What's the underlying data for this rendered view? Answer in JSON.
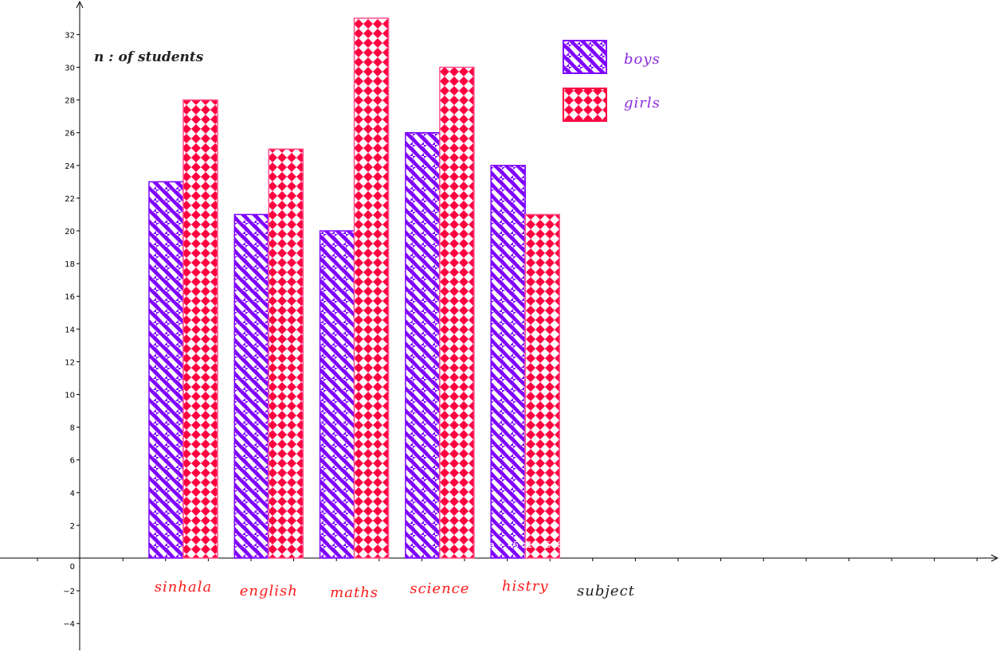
{
  "chart_data": {
    "type": "bar",
    "categories": [
      "sinhala",
      "english",
      "maths",
      "science",
      "histry"
    ],
    "series": [
      {
        "name": "boys",
        "values": [
          23,
          21,
          20,
          26,
          24
        ],
        "color": "#7f00ff"
      },
      {
        "name": "girls",
        "values": [
          28,
          25,
          33,
          30,
          21
        ],
        "color": "#ff0040"
      }
    ],
    "ylabel": "n : of students",
    "xlabel": "subject",
    "ylim": [
      -5.5,
      34
    ],
    "yticks": [
      -4,
      -2,
      0,
      2,
      4,
      6,
      8,
      10,
      12,
      14,
      16,
      18,
      20,
      22,
      24,
      26,
      28,
      30,
      32
    ],
    "annotation": "a = 45 b1 = 548",
    "legend_position": "top",
    "grid": false
  }
}
